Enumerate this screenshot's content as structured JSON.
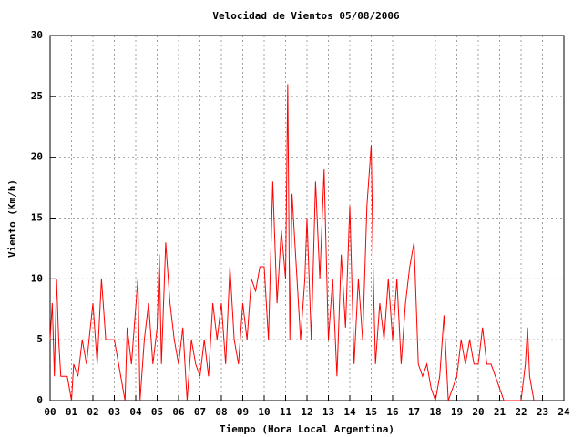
{
  "chart_data": {
    "type": "line",
    "title": "Velocidad de Vientos 05/08/2006",
    "x_label": "Tiempo (Hora Local Argentina)",
    "y_label": "Viento (Km/h)",
    "x": [
      0.0,
      0.1,
      0.2,
      0.3,
      0.4,
      0.5,
      0.8,
      1.0,
      1.1,
      1.3,
      1.5,
      1.7,
      2.0,
      2.2,
      2.4,
      2.6,
      3.0,
      3.3,
      3.5,
      3.6,
      3.8,
      4.1,
      4.2,
      4.4,
      4.6,
      4.8,
      5.0,
      5.1,
      5.2,
      5.4,
      5.6,
      5.8,
      6.0,
      6.2,
      6.4,
      6.6,
      6.8,
      7.0,
      7.2,
      7.4,
      7.6,
      7.8,
      8.0,
      8.2,
      8.4,
      8.6,
      8.8,
      9.0,
      9.2,
      9.4,
      9.6,
      9.8,
      10.0,
      10.2,
      10.4,
      10.6,
      10.8,
      11.0,
      11.1,
      11.2,
      11.3,
      11.5,
      11.7,
      11.9,
      12.0,
      12.2,
      12.4,
      12.6,
      12.8,
      13.0,
      13.2,
      13.4,
      13.6,
      13.8,
      14.0,
      14.2,
      14.4,
      14.6,
      14.8,
      15.0,
      15.1,
      15.2,
      15.4,
      15.6,
      15.8,
      16.0,
      16.2,
      16.4,
      16.6,
      16.8,
      17.0,
      17.2,
      17.4,
      17.6,
      17.8,
      18.0,
      18.2,
      18.4,
      18.6,
      19.0,
      19.2,
      19.4,
      19.6,
      19.8,
      20.0,
      20.2,
      20.4,
      20.6,
      21.2,
      22.0,
      22.2,
      22.3,
      22.4,
      22.6
    ],
    "series": [
      {
        "color": "#ff0000",
        "values": [
          5,
          8,
          2,
          10,
          5,
          2,
          2,
          0,
          3,
          2,
          5,
          3,
          8,
          3,
          10,
          5,
          5,
          2,
          0,
          6,
          3,
          10,
          0,
          5,
          8,
          3,
          6,
          12,
          3,
          13,
          8,
          5,
          3,
          6,
          0,
          5,
          3,
          2,
          5,
          2,
          8,
          5,
          8,
          3,
          11,
          5,
          3,
          8,
          5,
          10,
          9,
          11,
          11,
          5,
          18,
          8,
          14,
          10,
          26,
          5,
          17,
          11,
          5,
          10,
          15,
          5,
          18,
          10,
          19,
          5,
          10,
          2,
          12,
          6,
          16,
          3,
          10,
          5,
          16,
          21,
          10,
          3,
          8,
          5,
          10,
          5,
          10,
          3,
          8,
          11,
          13,
          3,
          2,
          3,
          1,
          0,
          2,
          7,
          0,
          2,
          5,
          3,
          5,
          3,
          3,
          6,
          3,
          3,
          0,
          0,
          3,
          6,
          2,
          0
        ]
      }
    ],
    "xlim": [
      0,
      24
    ],
    "xticks": [
      {
        "value": 0,
        "label": "00"
      },
      {
        "value": 1,
        "label": "01"
      },
      {
        "value": 2,
        "label": "02"
      },
      {
        "value": 3,
        "label": "03"
      },
      {
        "value": 4,
        "label": "04"
      },
      {
        "value": 5,
        "label": "05"
      },
      {
        "value": 6,
        "label": "06"
      },
      {
        "value": 7,
        "label": "07"
      },
      {
        "value": 8,
        "label": "08"
      },
      {
        "value": 9,
        "label": "09"
      },
      10,
      11,
      12,
      13,
      14,
      15,
      16,
      17,
      18,
      19,
      20,
      21,
      22,
      23,
      24
    ],
    "ylim": [
      0,
      30
    ],
    "yticks": [
      0,
      5,
      10,
      15,
      20,
      25,
      30
    ],
    "grid": true
  }
}
